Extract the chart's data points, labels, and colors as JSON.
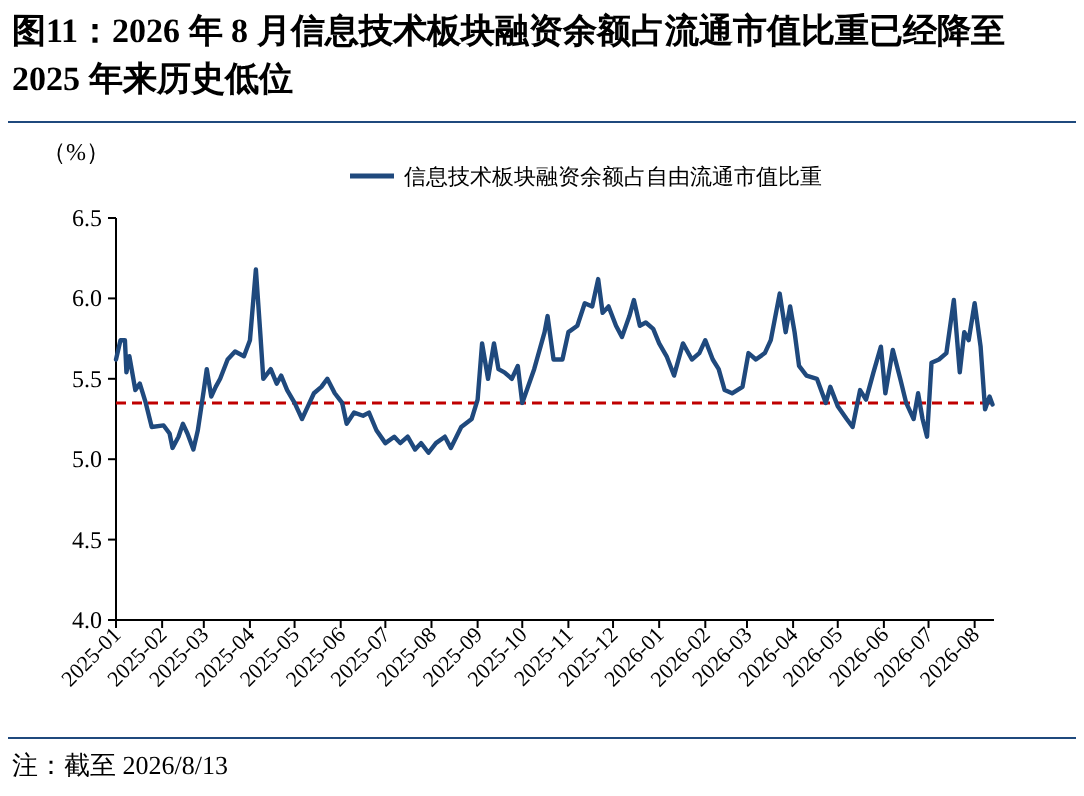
{
  "chart_data": {
    "type": "line",
    "title": "图11：2026 年 8 月信息技术板块融资余额占流通市值比重已经降至 2025 年来历史低位",
    "ylabel": "（%）",
    "legend": "top",
    "grid": false,
    "line_style": "solid",
    "marker": "none",
    "x": [
      "2025-01-01",
      "2025-01-04",
      "2025-01-07",
      "2025-01-08",
      "2025-01-10",
      "2025-01-14",
      "2025-01-17",
      "2025-01-21",
      "2025-01-25",
      "2025-02-02",
      "2025-02-06",
      "2025-02-08",
      "2025-02-12",
      "2025-02-15",
      "2025-02-18",
      "2025-02-22",
      "2025-02-25",
      "2025-03-01",
      "2025-03-03",
      "2025-03-06",
      "2025-03-09",
      "2025-03-12",
      "2025-03-17",
      "2025-03-22",
      "2025-03-28",
      "2025-04-01",
      "2025-04-05",
      "2025-04-08",
      "2025-04-10",
      "2025-04-15",
      "2025-04-19",
      "2025-04-22",
      "2025-04-26",
      "2025-05-01",
      "2025-05-06",
      "2025-05-10",
      "2025-05-14",
      "2025-05-19",
      "2025-05-23",
      "2025-05-28",
      "2025-06-02",
      "2025-06-05",
      "2025-06-10",
      "2025-06-16",
      "2025-06-20",
      "2025-06-25",
      "2025-07-01",
      "2025-07-07",
      "2025-07-11",
      "2025-07-16",
      "2025-07-21",
      "2025-07-25",
      "2025-07-30",
      "2025-08-04",
      "2025-08-10",
      "2025-08-14",
      "2025-08-21",
      "2025-08-28",
      "2025-09-01",
      "2025-09-04",
      "2025-09-08",
      "2025-09-12",
      "2025-09-15",
      "2025-09-19",
      "2025-09-24",
      "2025-09-28",
      "2025-10-01",
      "2025-10-09",
      "2025-10-16",
      "2025-10-18",
      "2025-10-22",
      "2025-10-28",
      "2025-11-01",
      "2025-11-07",
      "2025-11-12",
      "2025-11-17",
      "2025-11-21",
      "2025-11-24",
      "2025-11-28",
      "2025-12-03",
      "2025-12-07",
      "2025-12-12",
      "2025-12-15",
      "2025-12-19",
      "2025-12-23",
      "2025-12-28",
      "2026-01-01",
      "2026-01-06",
      "2026-01-11",
      "2026-01-17",
      "2026-01-23",
      "2026-01-28",
      "2026-02-01",
      "2026-02-06",
      "2026-02-10",
      "2026-02-14",
      "2026-02-19",
      "2026-02-26",
      "2026-03-02",
      "2026-03-07",
      "2026-03-13",
      "2026-03-17",
      "2026-03-23",
      "2026-03-27",
      "2026-03-30",
      "2026-04-02",
      "2026-04-05",
      "2026-04-10",
      "2026-04-17",
      "2026-04-23",
      "2026-04-26",
      "2026-05-01",
      "2026-05-07",
      "2026-05-11",
      "2026-05-16",
      "2026-05-20",
      "2026-05-25",
      "2026-05-30",
      "2026-06-02",
      "2026-06-07",
      "2026-06-12",
      "2026-06-16",
      "2026-06-21",
      "2026-06-24",
      "2026-06-27",
      "2026-06-30",
      "2026-07-03",
      "2026-07-08",
      "2026-07-13",
      "2026-07-18",
      "2026-07-22",
      "2026-07-25",
      "2026-07-28",
      "2026-08-01",
      "2026-08-05",
      "2026-08-08",
      "2026-08-11",
      "2026-08-13"
    ],
    "series": [
      {
        "name": "信息技术板块融资余额占自由流通市值比重",
        "color": "#1f497d",
        "values": [
          5.62,
          5.74,
          5.74,
          5.54,
          5.64,
          5.43,
          5.47,
          5.35,
          5.2,
          5.21,
          5.16,
          5.07,
          5.14,
          5.22,
          5.16,
          5.06,
          5.18,
          5.43,
          5.56,
          5.39,
          5.45,
          5.5,
          5.62,
          5.67,
          5.64,
          5.74,
          6.18,
          5.78,
          5.5,
          5.56,
          5.47,
          5.52,
          5.43,
          5.35,
          5.25,
          5.33,
          5.41,
          5.45,
          5.5,
          5.41,
          5.35,
          5.22,
          5.29,
          5.27,
          5.29,
          5.18,
          5.1,
          5.14,
          5.1,
          5.14,
          5.06,
          5.1,
          5.04,
          5.1,
          5.14,
          5.07,
          5.2,
          5.25,
          5.37,
          5.72,
          5.5,
          5.72,
          5.56,
          5.54,
          5.5,
          5.58,
          5.35,
          5.56,
          5.79,
          5.89,
          5.62,
          5.62,
          5.79,
          5.83,
          5.97,
          5.95,
          6.12,
          5.91,
          5.95,
          5.83,
          5.76,
          5.89,
          5.99,
          5.83,
          5.85,
          5.81,
          5.72,
          5.64,
          5.52,
          5.72,
          5.62,
          5.66,
          5.74,
          5.62,
          5.56,
          5.43,
          5.41,
          5.45,
          5.66,
          5.62,
          5.66,
          5.74,
          6.03,
          5.79,
          5.95,
          5.79,
          5.58,
          5.52,
          5.5,
          5.35,
          5.45,
          5.33,
          5.25,
          5.2,
          5.43,
          5.37,
          5.54,
          5.7,
          5.41,
          5.68,
          5.5,
          5.35,
          5.25,
          5.41,
          5.25,
          5.14,
          5.6,
          5.62,
          5.66,
          5.99,
          5.54,
          5.79,
          5.74,
          5.97,
          5.7,
          5.31,
          5.39,
          5.34
        ]
      }
    ],
    "ref_lines": [
      {
        "axis": "y",
        "value": 5.35,
        "color": "#c00000",
        "line_style": "dashed"
      }
    ],
    "xlim": [
      "2025-01-01",
      "2026-08-14"
    ],
    "xticks": [
      {
        "value": "2025-01-01",
        "label": "2025-01"
      },
      {
        "value": "2025-02-01",
        "label": "2025-02"
      },
      {
        "value": "2025-03-01",
        "label": "2025-03"
      },
      {
        "value": "2025-04-01",
        "label": "2025-04"
      },
      {
        "value": "2025-05-01",
        "label": "2025-05"
      },
      {
        "value": "2025-06-01",
        "label": "2025-06"
      },
      {
        "value": "2025-07-01",
        "label": "2025-07"
      },
      {
        "value": "2025-08-01",
        "label": "2025-08"
      },
      {
        "value": "2025-09-01",
        "label": "2025-09"
      },
      {
        "value": "2025-10-01",
        "label": "2025-10"
      },
      {
        "value": "2025-11-01",
        "label": "2025-11"
      },
      {
        "value": "2025-12-01",
        "label": "2025-12"
      },
      {
        "value": "2026-01-01",
        "label": "2026-01"
      },
      {
        "value": "2026-02-01",
        "label": "2026-02"
      },
      {
        "value": "2026-03-01",
        "label": "2026-03"
      },
      {
        "value": "2026-04-01",
        "label": "2026-04"
      },
      {
        "value": "2026-05-01",
        "label": "2026-05"
      },
      {
        "value": "2026-06-01",
        "label": "2026-06"
      },
      {
        "value": "2026-07-01",
        "label": "2026-07"
      },
      {
        "value": "2026-08-01",
        "label": "2026-08"
      }
    ],
    "ylim": [
      4.0,
      6.5
    ],
    "yticks": [
      {
        "value": 4.0,
        "label": "4.0"
      },
      {
        "value": 4.5,
        "label": "4.5"
      },
      {
        "value": 5.0,
        "label": "5.0"
      },
      {
        "value": 5.5,
        "label": "5.5"
      },
      {
        "value": 6.0,
        "label": "6.0"
      },
      {
        "value": 6.5,
        "label": "6.5"
      }
    ],
    "annotations": [
      "注：截至 2026/8/13"
    ]
  }
}
